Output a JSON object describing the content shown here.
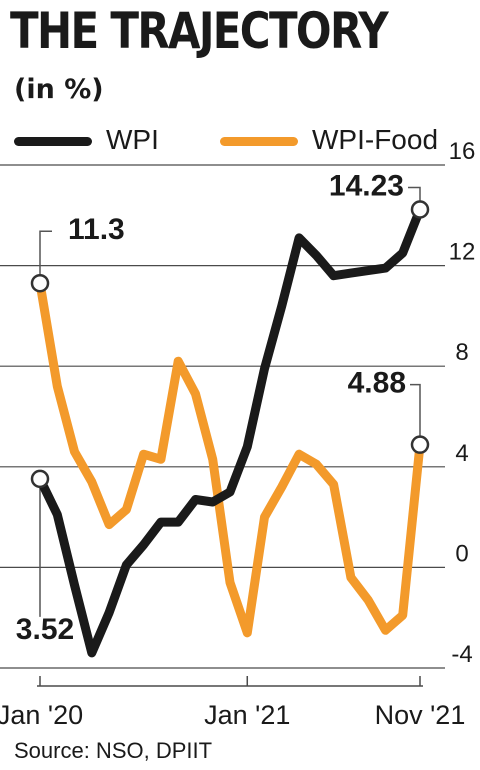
{
  "title": "THE TRAJECTORY",
  "subtitle": "(in %)",
  "source": "Source: NSO, DPIIT",
  "chart_data": {
    "type": "line",
    "x": [
      "Jan 2020",
      "Feb 2020",
      "Mar 2020",
      "Apr 2020",
      "May 2020",
      "Jun 2020",
      "Jul 2020",
      "Aug 2020",
      "Sep 2020",
      "Oct 2020",
      "Nov 2020",
      "Dec 2020",
      "Jan 2021",
      "Feb 2021",
      "Mar 2021",
      "Apr 2021",
      "May 2021",
      "Jun 2021",
      "Jul 2021",
      "Aug 2021",
      "Sep 2021",
      "Oct 2021",
      "Nov 2021"
    ],
    "x_tick_labels": [
      {
        "index": 0,
        "label": "Jan '20"
      },
      {
        "index": 12,
        "label": "Jan '21"
      },
      {
        "index": 22,
        "label": "Nov '21"
      }
    ],
    "ylim": [
      -4,
      16
    ],
    "y_ticks": [
      -4,
      0,
      4,
      8,
      12,
      16
    ],
    "grid": true,
    "legend": "top-left",
    "series": [
      {
        "name": "WPI",
        "color": "#1a1a1a",
        "values": [
          3.52,
          2.1,
          -0.7,
          -3.4,
          -1.8,
          0.1,
          0.9,
          1.8,
          1.8,
          2.7,
          2.6,
          3.0,
          4.8,
          7.9,
          10.4,
          13.1,
          12.4,
          11.6,
          11.7,
          11.8,
          11.9,
          12.5,
          14.23
        ]
      },
      {
        "name": "WPI-Food",
        "color": "#f39a2b",
        "values": [
          11.3,
          7.2,
          4.6,
          3.4,
          1.7,
          2.3,
          4.5,
          4.3,
          8.2,
          6.9,
          4.3,
          -0.6,
          -2.6,
          2.0,
          3.2,
          4.5,
          4.1,
          3.3,
          -0.4,
          -1.3,
          -2.5,
          -1.9,
          4.88
        ]
      }
    ],
    "annotations": [
      {
        "series": "WPI-Food",
        "index": 0,
        "label": "11.3"
      },
      {
        "series": "WPI",
        "index": 0,
        "label": "3.52"
      },
      {
        "series": "WPI",
        "index": 22,
        "label": "14.23"
      },
      {
        "series": "WPI-Food",
        "index": 22,
        "label": "4.88"
      }
    ]
  }
}
